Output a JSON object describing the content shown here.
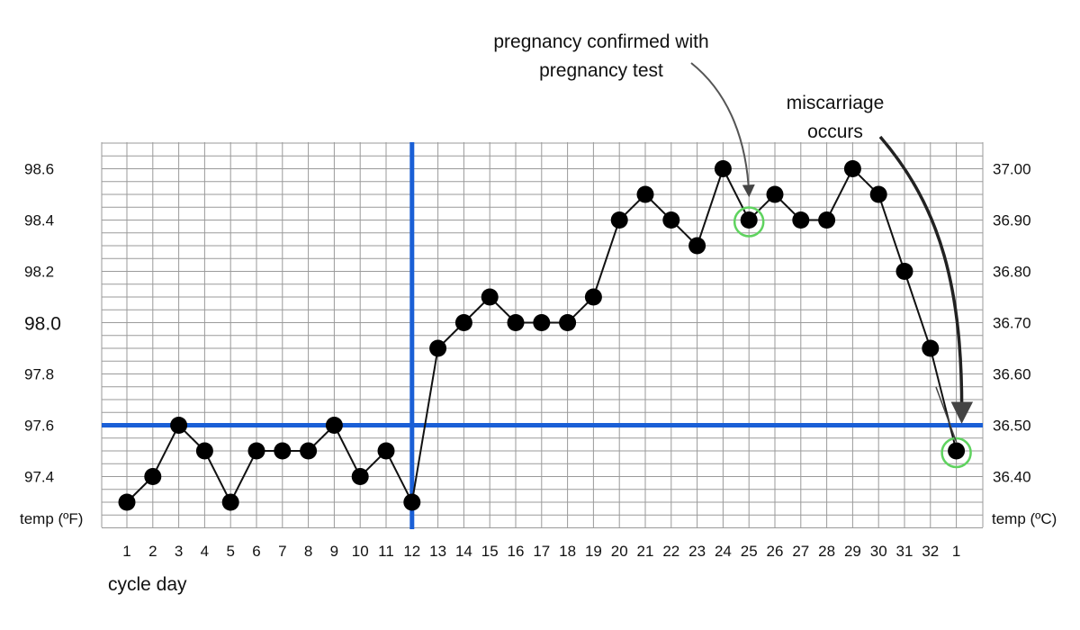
{
  "chart_data": {
    "type": "line",
    "x_tick_labels": [
      "1",
      "2",
      "3",
      "4",
      "5",
      "6",
      "7",
      "8",
      "9",
      "10",
      "11",
      "12",
      "13",
      "14",
      "15",
      "16",
      "17",
      "18",
      "19",
      "20",
      "21",
      "22",
      "23",
      "24",
      "25",
      "26",
      "27",
      "28",
      "29",
      "30",
      "31",
      "32",
      "1"
    ],
    "values": [
      97.3,
      97.4,
      97.6,
      97.5,
      97.3,
      97.5,
      97.5,
      97.5,
      97.6,
      97.4,
      97.5,
      97.3,
      97.9,
      98.0,
      98.1,
      98.0,
      98.0,
      98.0,
      98.1,
      98.4,
      98.5,
      98.4,
      98.3,
      98.6,
      98.4,
      98.5,
      98.4,
      98.4,
      98.6,
      98.5,
      98.2,
      97.9,
      97.5
    ],
    "xlabel": "cycle day",
    "ylabel_left": "temp (ºF)",
    "ylabel_right": "temp (ºC)",
    "ylim": [
      97.2,
      98.7
    ],
    "yticks_left": [
      "97.4",
      "97.6",
      "97.8",
      "98.0",
      "98.2",
      "98.4",
      "98.6"
    ],
    "yticks_right": [
      "36.40",
      "36.50",
      "36.60",
      "36.70",
      "36.80",
      "36.90",
      "37.00"
    ],
    "grid": true,
    "coverline_value": 97.6,
    "ovulation_day_index": 12,
    "highlighted_points": [
      25,
      33
    ],
    "highlight_color": "#5fd35f",
    "line_color": "#111111",
    "marker_color": "#000000",
    "coverline_color": "#1a5fd6",
    "annotations": [
      {
        "lines": [
          "pregnancy confirmed with",
          "pregnancy test"
        ],
        "target_index": 25
      },
      {
        "lines": [
          "miscarriage",
          "occurs"
        ],
        "target_index": 33
      }
    ]
  }
}
